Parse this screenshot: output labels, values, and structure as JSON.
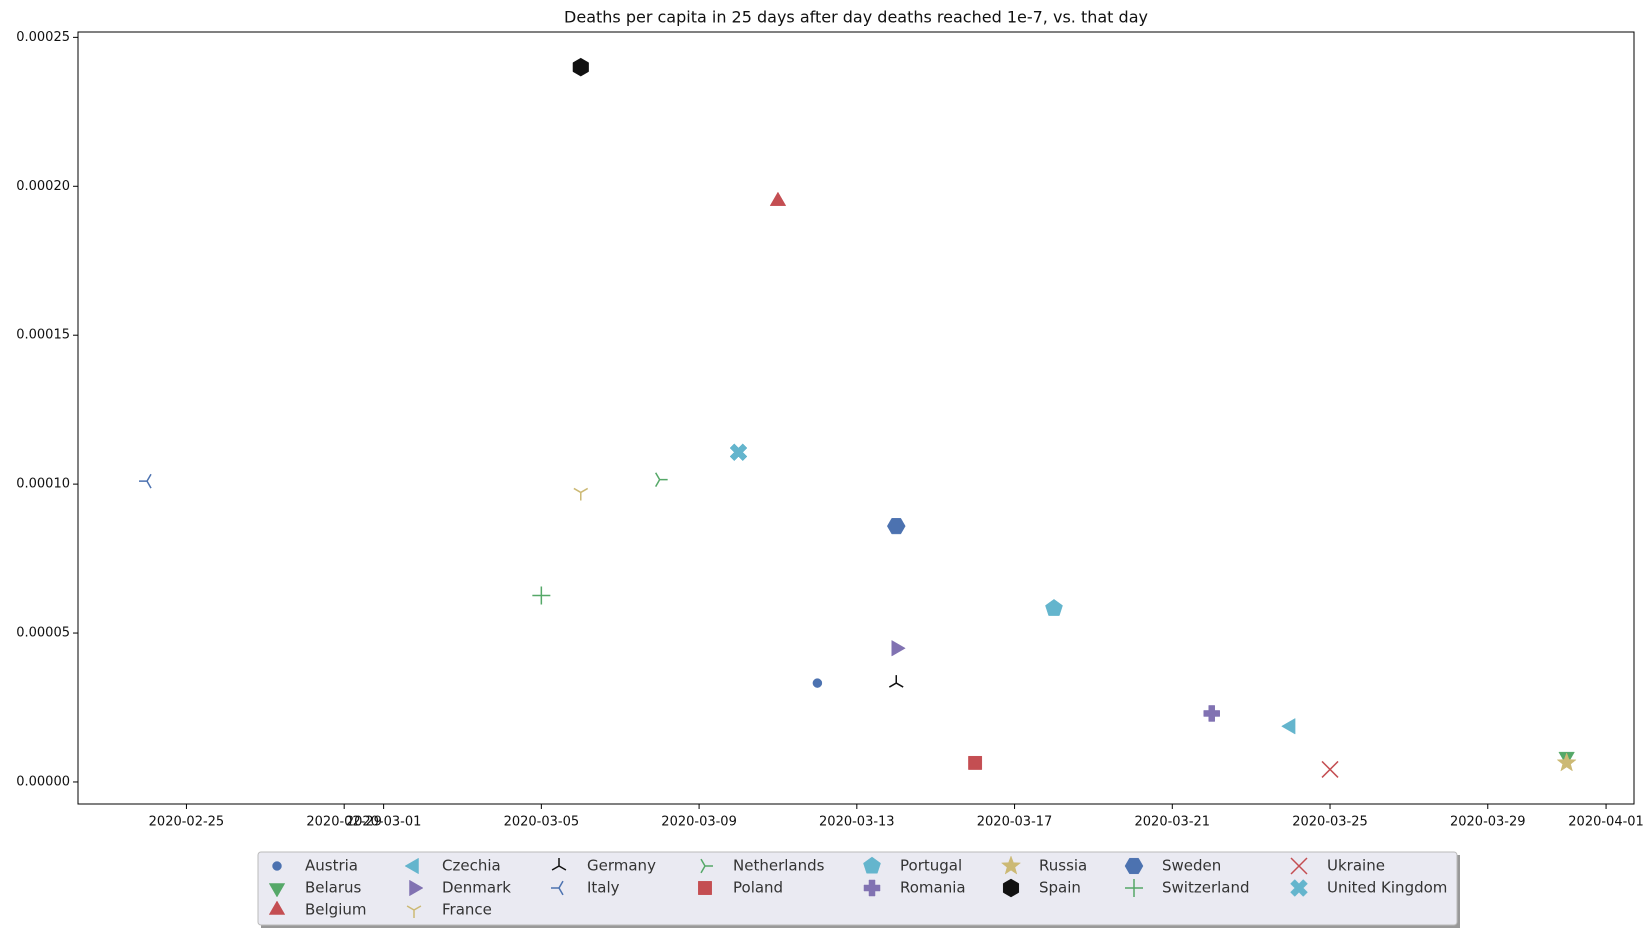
{
  "chart_data": {
    "type": "scatter",
    "title": "Deaths per capita in 25 days after day deaths reached 1e-7, vs. that day",
    "xlim": [
      "2020-02-22T06:00Z",
      "2020-04-01T17:00Z"
    ],
    "xticks": [
      "2020-02-25",
      "2020-02-29",
      "2020-03-01",
      "2020-03-05",
      "2020-03-09",
      "2020-03-13",
      "2020-03-17",
      "2020-03-21",
      "2020-03-25",
      "2020-03-29",
      "2020-04-01"
    ],
    "ylim": [
      -7.4e-06,
      0.0002518
    ],
    "yticks": [
      {
        "value": 0,
        "label": "0.00000"
      },
      {
        "value": 5e-05,
        "label": "0.00005"
      },
      {
        "value": 0.0001,
        "label": "0.00010"
      },
      {
        "value": 0.00015,
        "label": "0.00015"
      },
      {
        "value": 0.0002,
        "label": "0.00020"
      },
      {
        "value": 0.00025,
        "label": "0.00025"
      }
    ],
    "legend_columns": 8,
    "series": [
      {
        "name": "Austria",
        "color": "#4c72b0",
        "marker": "o",
        "x": [
          "2020-03-12"
        ],
        "values": [
          3.32e-05
        ]
      },
      {
        "name": "Belarus",
        "color": "#55a868",
        "marker": "v",
        "x": [
          "2020-03-31"
        ],
        "values": [
          8.5e-06
        ]
      },
      {
        "name": "Belgium",
        "color": "#c44e52",
        "marker": "^",
        "x": [
          "2020-03-11"
        ],
        "values": [
          0.000195
        ]
      },
      {
        "name": "Czechia",
        "color": "#64b5cd",
        "marker": "<",
        "x": [
          "2020-03-24"
        ],
        "values": [
          1.87e-05
        ]
      },
      {
        "name": "Denmark",
        "color": "#8172b2",
        "marker": ">",
        "x": [
          "2020-03-14"
        ],
        "values": [
          4.49e-05
        ]
      },
      {
        "name": "France",
        "color": "#ccb974",
        "marker": "1",
        "x": [
          "2020-03-06"
        ],
        "values": [
          9.72e-05
        ]
      },
      {
        "name": "Germany",
        "color": "#111111",
        "marker": "2",
        "x": [
          "2020-03-14"
        ],
        "values": [
          3.32e-05
        ]
      },
      {
        "name": "Italy",
        "color": "#4c72b0",
        "marker": "3",
        "x": [
          "2020-02-24"
        ],
        "values": [
          0.000101
        ]
      },
      {
        "name": "Netherlands",
        "color": "#55a868",
        "marker": "4",
        "x": [
          "2020-03-08"
        ],
        "values": [
          0.0001015
        ]
      },
      {
        "name": "Poland",
        "color": "#c44e52",
        "marker": "s",
        "x": [
          "2020-03-16"
        ],
        "values": [
          6.4e-06
        ]
      },
      {
        "name": "Portugal",
        "color": "#64b5cd",
        "marker": "p",
        "x": [
          "2020-03-18"
        ],
        "values": [
          5.83e-05
        ]
      },
      {
        "name": "Romania",
        "color": "#8172b2",
        "marker": "P",
        "x": [
          "2020-03-22"
        ],
        "values": [
          2.3e-05
        ]
      },
      {
        "name": "Russia",
        "color": "#ccb974",
        "marker": "*",
        "x": [
          "2020-03-31"
        ],
        "values": [
          6.4e-06
        ]
      },
      {
        "name": "Spain",
        "color": "#111111",
        "marker": "h",
        "x": [
          "2020-03-06"
        ],
        "values": [
          0.00024
        ]
      },
      {
        "name": "Sweden",
        "color": "#4c72b0",
        "marker": "H",
        "x": [
          "2020-03-14"
        ],
        "values": [
          8.59e-05
        ]
      },
      {
        "name": "Switzerland",
        "color": "#55a868",
        "marker": "+",
        "x": [
          "2020-03-05"
        ],
        "values": [
          6.26e-05
        ]
      },
      {
        "name": "Ukraine",
        "color": "#c44e52",
        "marker": "x",
        "x": [
          "2020-03-25"
        ],
        "values": [
          4.2e-06
        ]
      },
      {
        "name": "United Kingdom",
        "color": "#64b5cd",
        "marker": "X",
        "x": [
          "2020-03-10"
        ],
        "values": [
          0.0001107
        ]
      }
    ]
  }
}
